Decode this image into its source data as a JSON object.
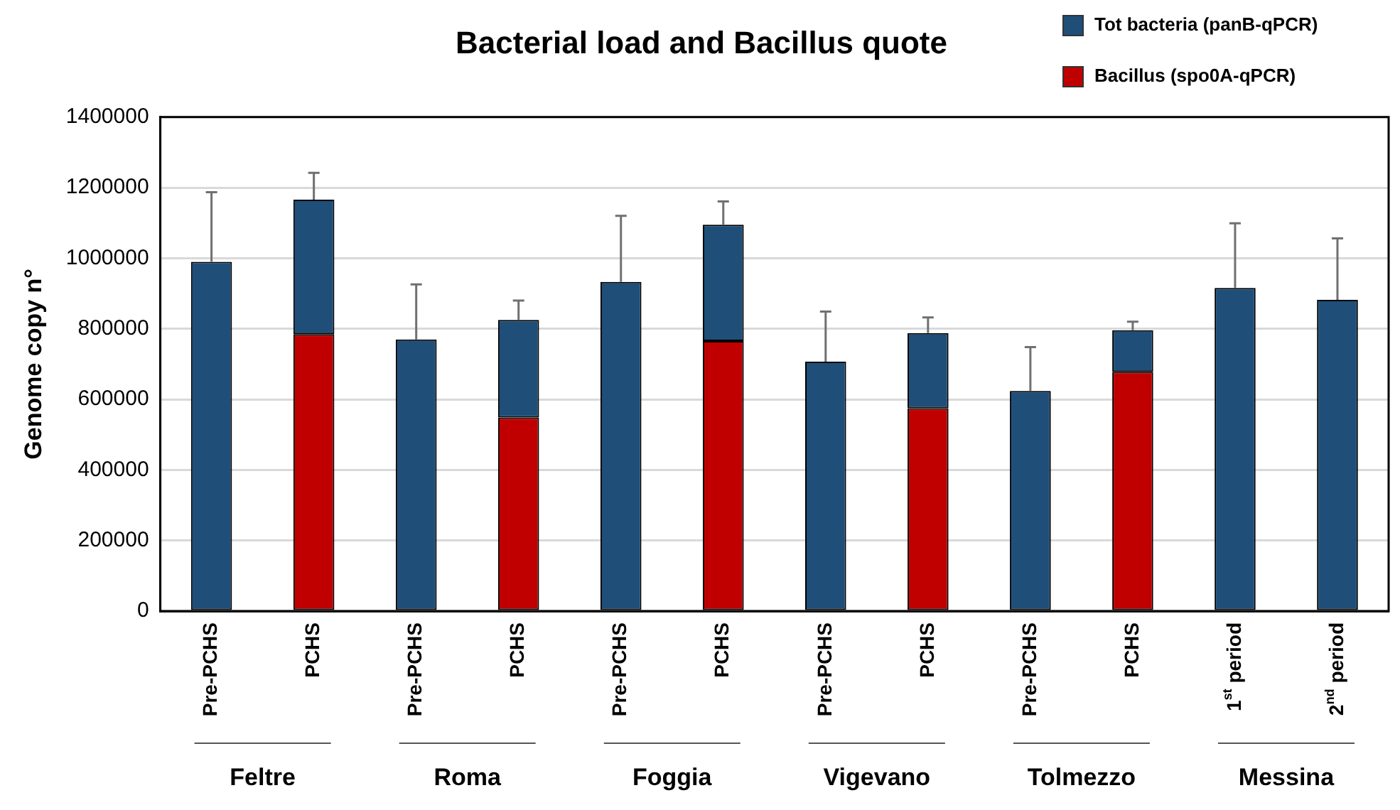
{
  "chart_data": {
    "type": "bar",
    "title": "Bacterial load and Bacillus quote",
    "ylabel": "Genome copy n°",
    "categories": [
      "Pre-PCHS",
      "PCHS",
      "Pre-PCHS",
      "PCHS",
      "Pre-PCHS",
      "PCHS",
      "Pre-PCHS",
      "PCHS",
      "Pre-PCHS",
      "PCHS",
      "1$^{st}$ period",
      "2$^{nd}$ period"
    ],
    "stacked": true,
    "series": [
      {
        "name": "Bacillus (spo0A-qPCR)",
        "color": "#c00000",
        "values": [
          null,
          785000,
          null,
          549000,
          null,
          765000,
          null,
          575000,
          null,
          678000,
          null,
          null
        ]
      },
      {
        "name": "Tot bacteria (panB-qPCR)",
        "color": "#1f4e79",
        "values": [
          990000,
          381000,
          770000,
          276000,
          933000,
          330000,
          707000,
          213000,
          624000,
          118000,
          916000,
          882000
        ],
        "errors": [
          197000,
          76000,
          156000,
          55000,
          187000,
          66000,
          142000,
          44000,
          124000,
          24000,
          183000,
          174000
        ]
      }
    ],
    "ylim": [
      0,
      1400000
    ],
    "yticks": [
      0,
      200000,
      400000,
      600000,
      800000,
      1000000,
      1200000,
      1400000
    ],
    "grid": "y",
    "legend": "top right",
    "annotations": [
      "Feltre",
      "Roma",
      "Foggia",
      "Vigevano",
      "Tolmezzo",
      "Messina"
    ]
  }
}
